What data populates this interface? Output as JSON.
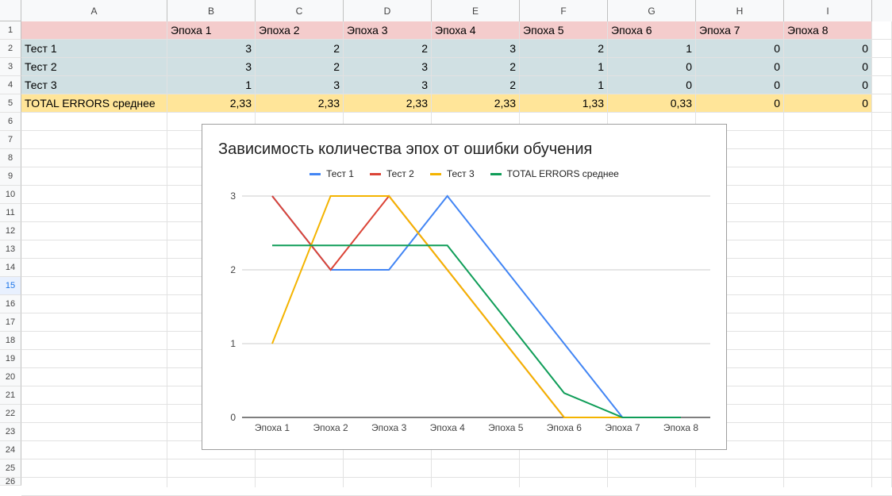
{
  "spreadsheet": {
    "columns": [
      "A",
      "B",
      "C",
      "D",
      "E",
      "F",
      "G",
      "H",
      "I"
    ],
    "row_numbers": [
      "1",
      "2",
      "3",
      "4",
      "5",
      "6",
      "7",
      "8",
      "9",
      "10",
      "11",
      "12",
      "13",
      "14",
      "15",
      "16",
      "17",
      "18",
      "19",
      "20",
      "21",
      "22",
      "23",
      "24",
      "25",
      "26"
    ],
    "selected_row": "15",
    "header_row": [
      "",
      "Эпоха 1",
      "Эпоха 2",
      "Эпоха 3",
      "Эпоха 4",
      "Эпоха 5",
      "Эпоха 6",
      "Эпоха 7",
      "Эпоха 8"
    ],
    "data_rows": [
      [
        "Тест 1",
        "3",
        "2",
        "2",
        "3",
        "2",
        "1",
        "0",
        "0"
      ],
      [
        "Тест 2",
        "3",
        "2",
        "3",
        "2",
        "1",
        "0",
        "0",
        "0"
      ],
      [
        "Тест 3",
        "1",
        "3",
        "3",
        "2",
        "1",
        "0",
        "0",
        "0"
      ]
    ],
    "total_row": [
      "TOTAL ERRORS среднее",
      "2,33",
      "2,33",
      "2,33",
      "2,33",
      "1,33",
      "0,33",
      "0",
      "0"
    ],
    "colors": {
      "header_fill": "#f4cccc",
      "data_fill": "#d0e0e3",
      "total_fill": "#ffe599"
    }
  },
  "chart_data": {
    "type": "line",
    "title": "Зависимость количества эпох от ошибки  обучения",
    "categories": [
      "Эпоха 1",
      "Эпоха 2",
      "Эпоха 3",
      "Эпоха 4",
      "Эпоха 5",
      "Эпоха 6",
      "Эпоха 7",
      "Эпоха 8"
    ],
    "series": [
      {
        "name": "Тест 1",
        "color": "#4285f4",
        "values": [
          3,
          2,
          2,
          3,
          2,
          1,
          0,
          0
        ]
      },
      {
        "name": "Тест 2",
        "color": "#db4437",
        "values": [
          3,
          2,
          3,
          2,
          1,
          0,
          0,
          0
        ]
      },
      {
        "name": "Тест 3",
        "color": "#f4b400",
        "values": [
          1,
          3,
          3,
          2,
          1,
          0,
          0,
          0
        ]
      },
      {
        "name": "TOTAL ERRORS среднее",
        "color": "#0f9d58",
        "values": [
          2.33,
          2.33,
          2.33,
          2.33,
          1.33,
          0.33,
          0,
          0
        ]
      }
    ],
    "y_ticks": [
      "0",
      "1",
      "2",
      "3"
    ],
    "ylim": [
      0,
      3
    ],
    "legend": "top",
    "grid": true
  }
}
